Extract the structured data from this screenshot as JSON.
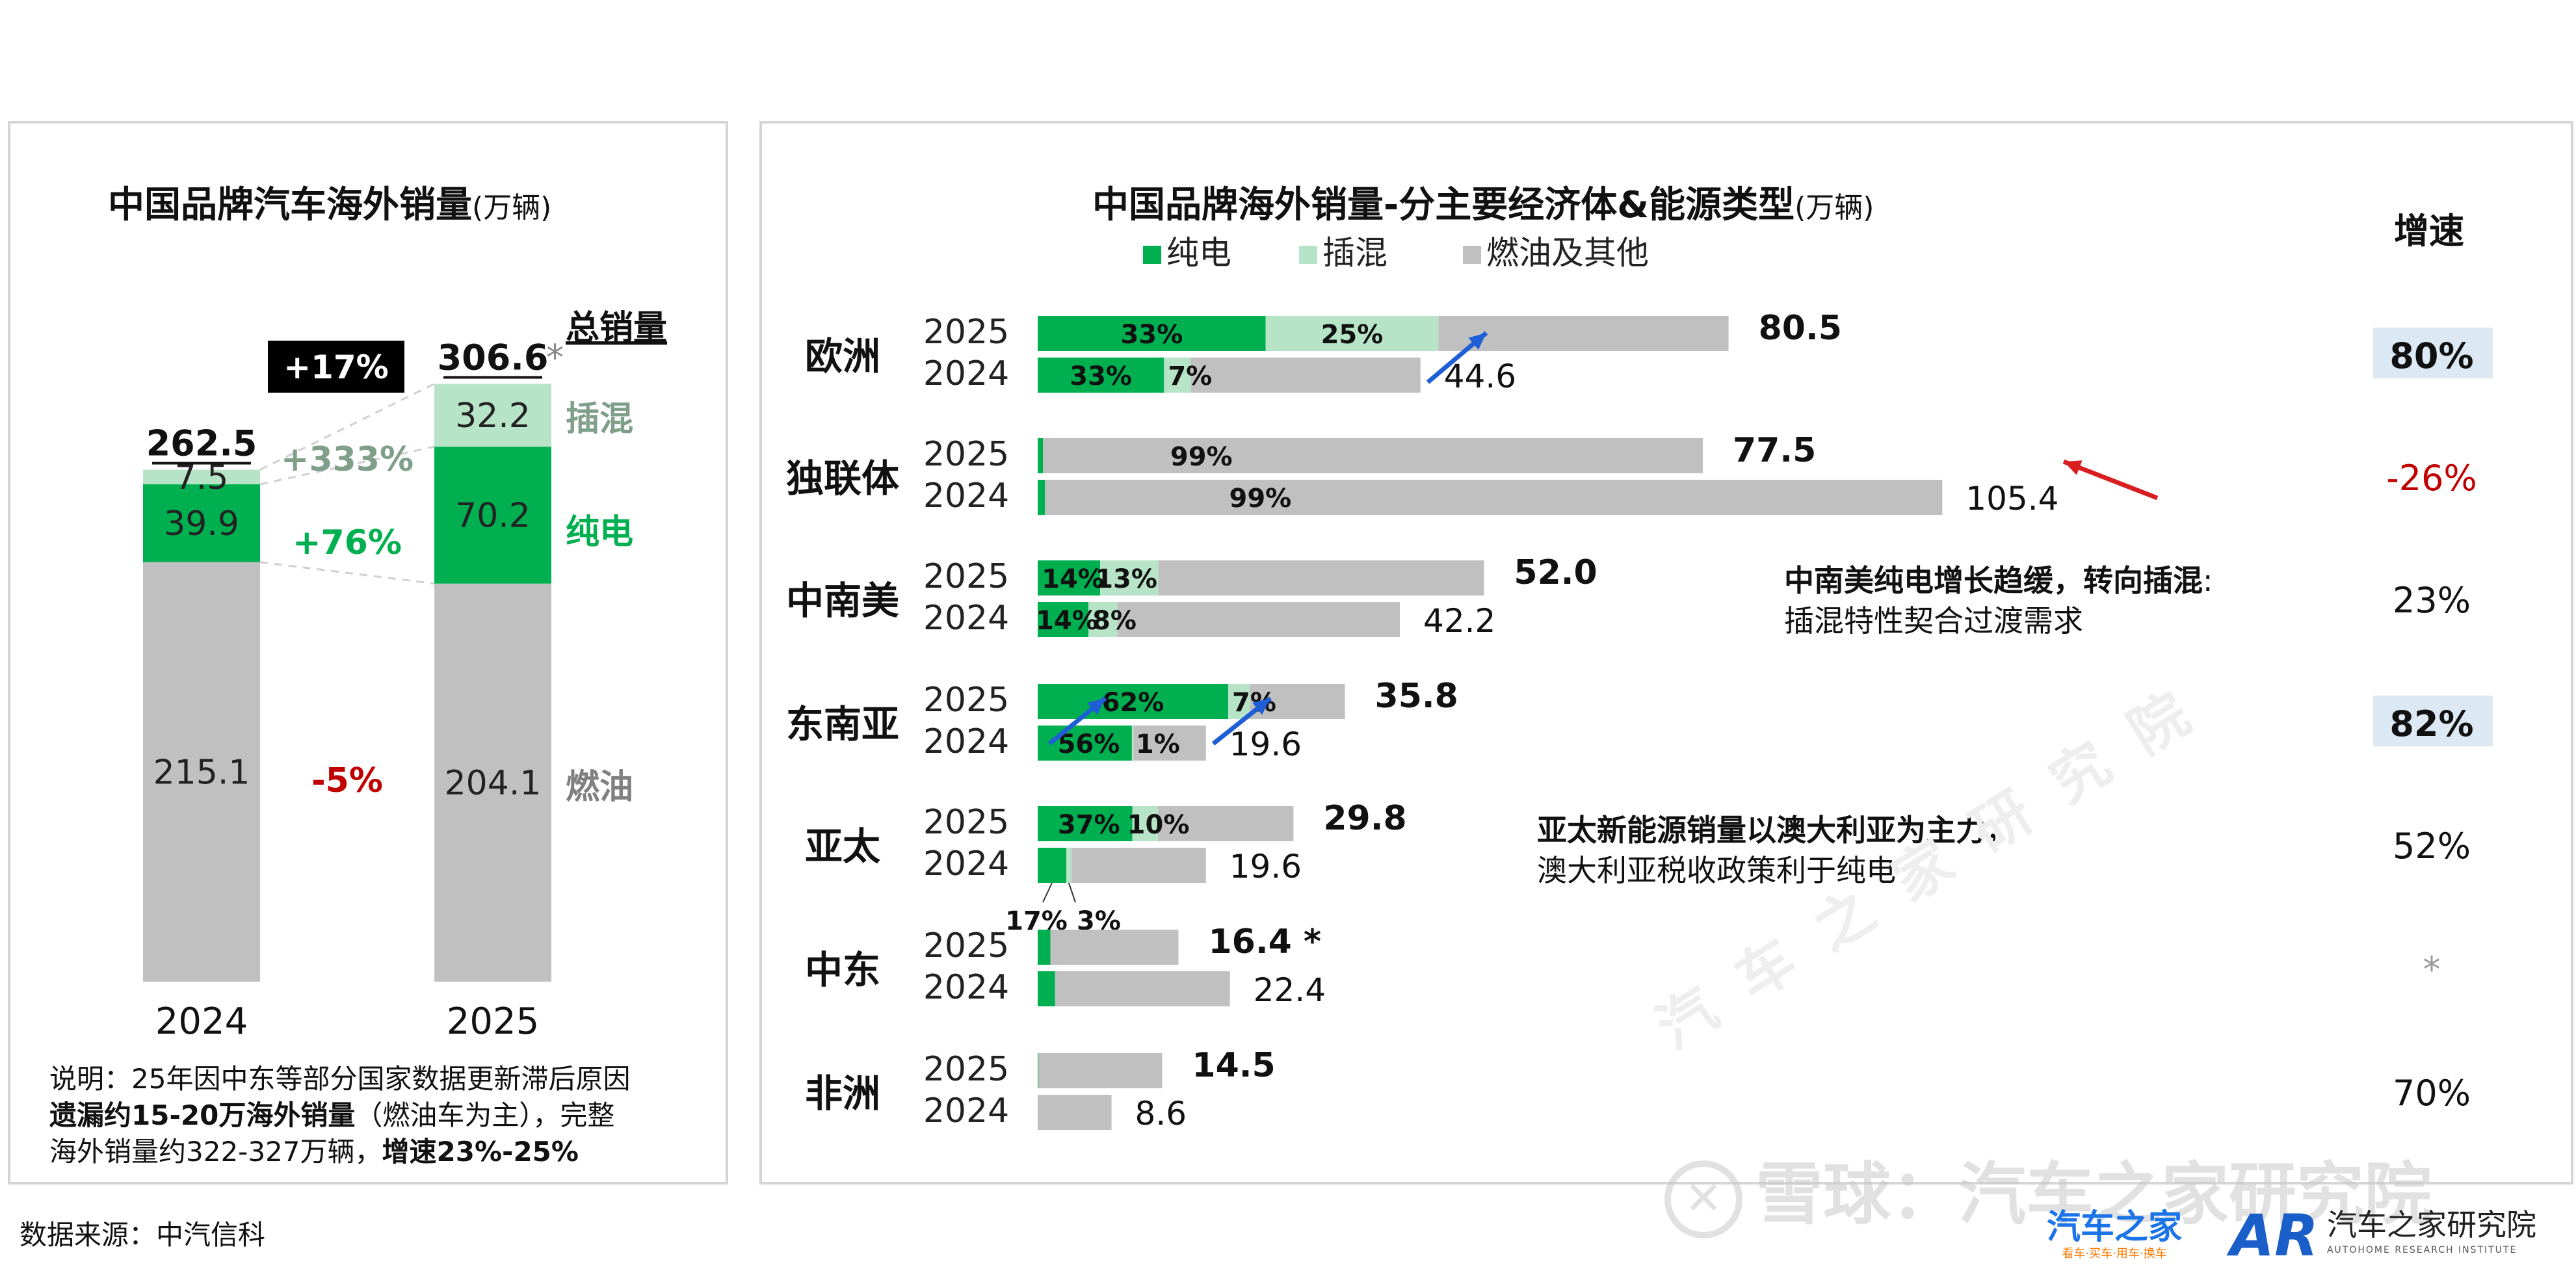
{
  "chart_data": [
    {
      "type": "bar",
      "stacked": true,
      "title": "中国品牌汽车海外销量",
      "unit": "(万辆)",
      "categories": [
        "2024",
        "2025"
      ],
      "series": [
        {
          "name": "燃油",
          "values": [
            215.1,
            204.1
          ],
          "color": "#c0c0c0"
        },
        {
          "name": "纯电",
          "values": [
            39.9,
            70.2
          ],
          "color": "#00b050"
        },
        {
          "name": "插混",
          "values": [
            7.5,
            32.2
          ],
          "color": "#b7e4c7"
        }
      ],
      "totals": [
        "262.5",
        "306.6"
      ],
      "total_mark": "*",
      "total_label": "总销量",
      "growth_total": "+17%",
      "growth_by_type": {
        "插混": "+333%",
        "纯电": "+76%",
        "燃油": "-5%"
      },
      "labels": {
        "2024": {
          "燃油": "215.1",
          "纯电": "39.9",
          "插混": "7.5"
        },
        "2025": {
          "燃油": "204.1",
          "纯电": "70.2",
          "插混": "32.2"
        }
      }
    },
    {
      "type": "bar",
      "orientation": "horizontal",
      "stacked": true,
      "title": "中国品牌海外销量-分主要经济体&能源类型",
      "unit": "(万辆)",
      "legend": [
        {
          "name": "纯电",
          "color": "#00b050"
        },
        {
          "name": "插混",
          "color": "#b7e4c7"
        },
        {
          "name": "燃油及其他",
          "color": "#c0c0c0"
        }
      ],
      "growth_header": "增速",
      "regions": [
        {
          "name": "欧洲",
          "growth": "80%",
          "growth_style": "highlight",
          "rows": [
            {
              "year": "2025",
              "total": 80.5,
              "label": "80.5",
              "bold": true,
              "bev": 0.33,
              "phev": 0.25,
              "bev_label": "33%",
              "phev_label": "25%"
            },
            {
              "year": "2024",
              "total": 44.6,
              "label": "44.6",
              "bold": false,
              "bev": 0.33,
              "phev": 0.07,
              "bev_label": "33%",
              "phev_label": "7%"
            }
          ]
        },
        {
          "name": "独联体",
          "growth": "-26%",
          "growth_style": "negative",
          "rows": [
            {
              "year": "2025",
              "total": 77.5,
              "label": "77.5",
              "bold": true,
              "bev": 0.008,
              "phev": 0,
              "ice_label": "99%"
            },
            {
              "year": "2024",
              "total": 105.4,
              "label": "105.4",
              "bold": false,
              "bev": 0.008,
              "phev": 0,
              "ice_label": "99%"
            }
          ]
        },
        {
          "name": "中南美",
          "growth": "23%",
          "growth_style": "normal",
          "rows": [
            {
              "year": "2025",
              "total": 52.0,
              "label": "52.0",
              "bold": true,
              "bev": 0.14,
              "phev": 0.13,
              "bev_label": "14%",
              "phev_label": "13%"
            },
            {
              "year": "2024",
              "total": 42.2,
              "label": "42.2",
              "bold": false,
              "bev": 0.14,
              "phev": 0.08,
              "bev_label": "14%",
              "phev_label": "8%"
            }
          ]
        },
        {
          "name": "东南亚",
          "growth": "82%",
          "growth_style": "highlight",
          "rows": [
            {
              "year": "2025",
              "total": 35.8,
              "label": "35.8",
              "bold": true,
              "bev": 0.62,
              "phev": 0.07,
              "bev_label": "62%",
              "phev_label": "7%"
            },
            {
              "year": "2024",
              "total": 19.6,
              "label": "19.6",
              "bold": false,
              "bev": 0.56,
              "phev": 0.01,
              "bev_label": "56%",
              "phev_label": "1%"
            }
          ]
        },
        {
          "name": "亚太",
          "growth": "52%",
          "growth_style": "normal",
          "rows": [
            {
              "year": "2025",
              "total": 29.8,
              "label": "29.8",
              "bold": true,
              "bev": 0.37,
              "phev": 0.1,
              "bev_label": "37%",
              "phev_label": "10%"
            },
            {
              "year": "2024",
              "total": 19.6,
              "label": "19.6",
              "bold": false,
              "bev": 0.17,
              "phev": 0.03,
              "bev_out_label": "17%",
              "phev_out_label": "3%"
            }
          ]
        },
        {
          "name": "中东",
          "growth": "*",
          "growth_style": "muted",
          "rows": [
            {
              "year": "2025",
              "total": 16.4,
              "label": "16.4 *",
              "bold": true,
              "bev": 0.09,
              "phev": 0
            },
            {
              "year": "2024",
              "total": 22.4,
              "label": "22.4",
              "bold": false,
              "bev": 0.09,
              "phev": 0
            }
          ]
        },
        {
          "name": "非洲",
          "growth": "70%",
          "growth_style": "normal",
          "rows": [
            {
              "year": "2025",
              "total": 14.5,
              "label": "14.5",
              "bold": true,
              "bev": 0.005,
              "phev": 0
            },
            {
              "year": "2024",
              "total": 8.6,
              "label": "8.6",
              "bold": false,
              "bev": 0,
              "phev": 0
            }
          ]
        }
      ]
    }
  ],
  "annotations": {
    "latam_bold": "中南美纯电增长趋缓，转向插混",
    "latam_colon": ":",
    "latam_sub": "插混特性契合过渡需求",
    "apac_bold": "亚太新能源销量以澳大利亚为主力",
    "apac_comma": "，",
    "apac_sub": "澳大利亚税收政策利于纯电"
  },
  "note": {
    "line1": "说明：25年因中东等部分国家数据更新滞后原因",
    "line2_bold": "遗漏约15-20万海外销量",
    "line2_rest": "（燃油车为主），完整",
    "line3_rest": "海外销量约322-327万辆，",
    "line3_bold": "增速23%-25%"
  },
  "source": "数据来源：中汽信科",
  "watermark": {
    "diagonal": "汽 车 之 家 研 究 院",
    "xueqiu": "雪球：汽车之家研究院"
  },
  "logos": {
    "autohome_main": "汽车之家",
    "autohome_sub": "看车·买车·用车·换车",
    "ar_mark": "AR",
    "ar_name": "汽车之家研究院",
    "ar_sub": "AUTOHOME RESEARCH INSTITUTE"
  },
  "colors": {
    "bev": "#00b050",
    "phev": "#b7e4c7",
    "ice": "#c0c0c0",
    "phev_label": "#7f9f8a",
    "ice_label": "#808080",
    "negative": "#c00000",
    "highlight_bg": "#dce9f5",
    "arrow_blue": "#1f5fd6",
    "arrow_red": "#d81e1e"
  }
}
